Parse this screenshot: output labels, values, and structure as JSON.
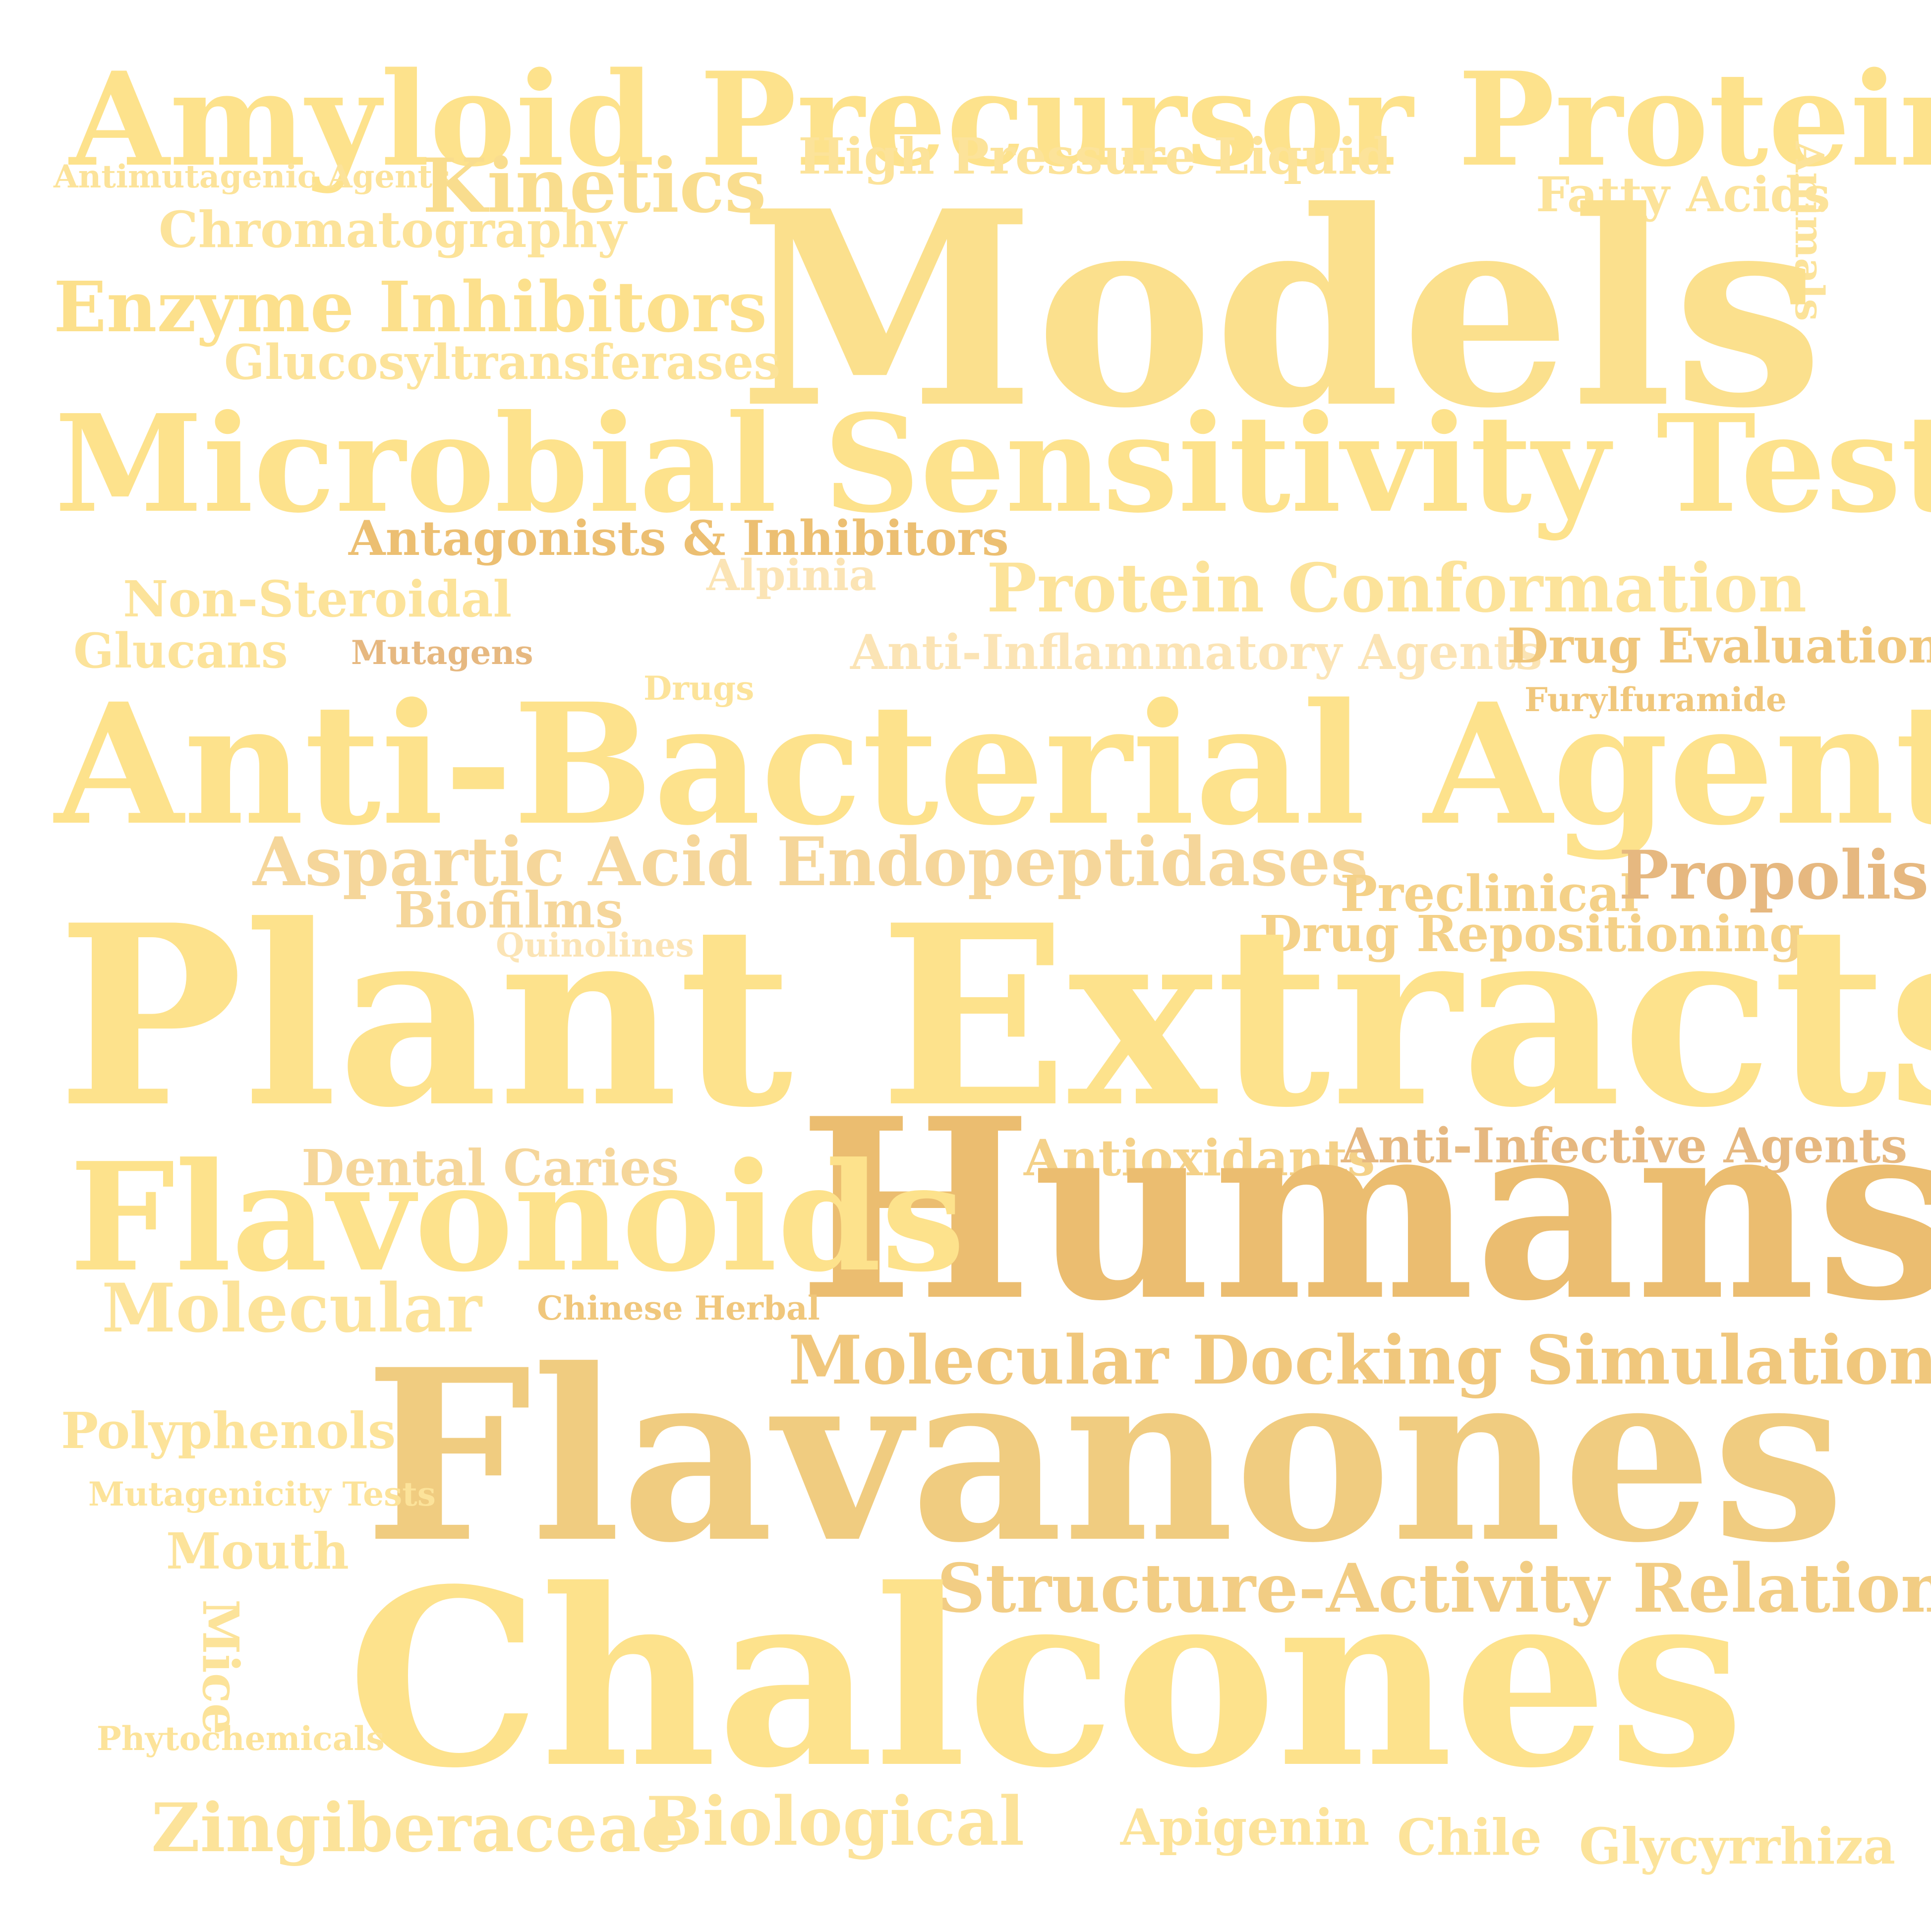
{
  "words": {
    "amyloid": {
      "text": "Amyloid Precursor Protein Secretases",
      "color": "#fde28c"
    },
    "antimutagenic": {
      "text": "Antimutagenic Agents",
      "color": "#fce39a"
    },
    "kinetics": {
      "text": "Kinetics",
      "color": "#f9dd8e"
    },
    "hplc": {
      "text": "High Pressure Liquid",
      "color": "#fce39a"
    },
    "fatty_acids": {
      "text": "Fatty Acids",
      "color": "#fce39a"
    },
    "animals": {
      "text": "Animals",
      "color": "#fce39a"
    },
    "chromatography": {
      "text": "Chromatography",
      "color": "#fce39a"
    },
    "models": {
      "text": "Models",
      "color": "#fbe08d"
    },
    "enzyme_inhibitors": {
      "text": "Enzyme Inhibitors",
      "color": "#fce08c"
    },
    "glucosyltransferases": {
      "text": "Glucosyltransferases",
      "color": "#fce39a"
    },
    "microbial": {
      "text": "Microbial Sensitivity Tests",
      "color": "#fde28c"
    },
    "antagonists": {
      "text": "Antagonists & Inhibitors",
      "color": "#ecbf72"
    },
    "alpinia": {
      "text": "Alpinia",
      "color": "#fbe4b5"
    },
    "non_steroidal": {
      "text": "Non-Steroidal",
      "color": "#fce39a"
    },
    "protein_conformation": {
      "text": "Protein Conformation",
      "color": "#fce39a"
    },
    "glucans": {
      "text": "Glucans",
      "color": "#fce39a"
    },
    "mutagens": {
      "text": "Mutagens",
      "color": "#e6b880"
    },
    "anti_inflammatory": {
      "text": "Anti-Inflammatory Agents",
      "color": "#fbe4b5"
    },
    "drug_evaluation": {
      "text": "Drug Evaluation",
      "color": "#f0c77c"
    },
    "drugs": {
      "text": "Drugs",
      "color": "#fce39a"
    },
    "furylfuramide": {
      "text": "Furylfuramide",
      "color": "#f0c77c"
    },
    "anti_bacterial": {
      "text": "Anti-Bacterial Agents",
      "color": "#fde28c"
    },
    "aspartic": {
      "text": "Aspartic Acid Endopeptidases",
      "color": "#f5d69a"
    },
    "preclinical": {
      "text": "Preclinical",
      "color": "#f4d188"
    },
    "propolis": {
      "text": "Propolis",
      "color": "#e6b880"
    },
    "biofilms": {
      "text": "Biofilms",
      "color": "#f5d69a"
    },
    "quinolines": {
      "text": "Quinolines",
      "color": "#fbe4b5"
    },
    "drug_repositioning": {
      "text": "Drug Repositioning",
      "color": "#f4d188"
    },
    "plant_extracts": {
      "text": "Plant Extracts",
      "color": "#fde28c"
    },
    "dental_caries": {
      "text": "Dental Caries",
      "color": "#f5d69a"
    },
    "antioxidants": {
      "text": "Antioxidants",
      "color": "#f4d188"
    },
    "anti_infective": {
      "text": "Anti-Infective Agents",
      "color": "#e6b880"
    },
    "humans": {
      "text": "Humans",
      "color": "#ebbd70"
    },
    "flavonoids": {
      "text": "Flavonoids",
      "color": "#fde28c"
    },
    "molecular": {
      "text": "Molecular",
      "color": "#fce39a"
    },
    "chinese_herbal": {
      "text": "Chinese Herbal",
      "color": "#f0c77c"
    },
    "docking": {
      "text": "Molecular Docking Simulation",
      "color": "#f0c77c"
    },
    "flavanones": {
      "text": "Flavanones",
      "color": "#f0cc80"
    },
    "polyphenols": {
      "text": "Polyphenols",
      "color": "#fce39a"
    },
    "mutagenicity": {
      "text": "Mutagenicity Tests",
      "color": "#fce39a"
    },
    "mouth": {
      "text": "Mouth",
      "color": "#fce39a"
    },
    "structure_activity": {
      "text": "Structure-Activity Relationship",
      "color": "#f2cd84"
    },
    "mice": {
      "text": "Mice",
      "color": "#fce39a"
    },
    "chalcones": {
      "text": "Chalcones",
      "color": "#fde28c"
    },
    "phytochemicals": {
      "text": "Phytochemicals",
      "color": "#fce39a"
    },
    "zingiberaceae": {
      "text": "Zingiberaceae",
      "color": "#fce39a"
    },
    "biological": {
      "text": "Biological",
      "color": "#fce39a"
    },
    "apigenin": {
      "text": "Apigenin",
      "color": "#fce39a"
    },
    "chile": {
      "text": "Chile",
      "color": "#fce39a"
    },
    "glycyrrhiza": {
      "text": "Glycyrrhiza",
      "color": "#fce39a"
    }
  }
}
